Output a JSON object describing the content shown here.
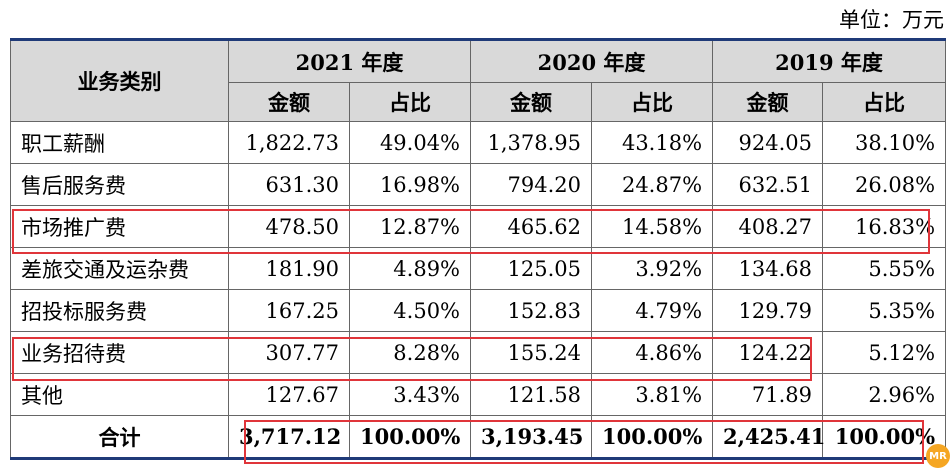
{
  "unit_label": "单位：万元",
  "header": {
    "category": "业务类别",
    "years": [
      "2021 年度",
      "2020 年度",
      "2019 年度"
    ],
    "amount": "金额",
    "ratio": "占比"
  },
  "rows": [
    {
      "category": "职工薪酬",
      "values": [
        "1,822.73",
        "49.04%",
        "1,378.95",
        "43.18%",
        "924.05",
        "38.10%"
      ]
    },
    {
      "category": "售后服务费",
      "values": [
        "631.30",
        "16.98%",
        "794.20",
        "24.87%",
        "632.51",
        "26.08%"
      ]
    },
    {
      "category": "市场推广费",
      "values": [
        "478.50",
        "12.87%",
        "465.62",
        "14.58%",
        "408.27",
        "16.83%"
      ]
    },
    {
      "category": "差旅交通及运杂费",
      "values": [
        "181.90",
        "4.89%",
        "125.05",
        "3.92%",
        "134.68",
        "5.55%"
      ]
    },
    {
      "category": "招投标服务费",
      "values": [
        "167.25",
        "4.50%",
        "152.83",
        "4.79%",
        "129.79",
        "5.35%"
      ]
    },
    {
      "category": "业务招待费",
      "values": [
        "307.77",
        "8.28%",
        "155.24",
        "4.86%",
        "124.22",
        "5.12%"
      ]
    },
    {
      "category": "其他",
      "values": [
        "127.67",
        "3.43%",
        "121.58",
        "3.81%",
        "71.89",
        "2.96%"
      ]
    }
  ],
  "total": {
    "category": "合计",
    "values": [
      "3,717.12",
      "100.00%",
      "3,193.45",
      "100.00%",
      "2,425.41",
      "100.00%"
    ]
  },
  "highlight_color": "#e0353a"
}
